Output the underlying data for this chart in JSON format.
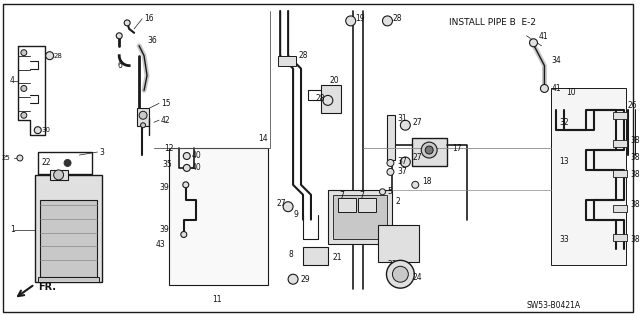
{
  "background_color": "#ffffff",
  "header_text": "INSTALL PIPE B  E-2",
  "part_number": "SW53-B0421A",
  "direction_label": "FR.",
  "fig_width": 6.4,
  "fig_height": 3.16,
  "dpi": 100,
  "lc": "#1a1a1a",
  "gray1": "#c8c8c8",
  "gray2": "#e0e0e0",
  "gray3": "#aaaaaa"
}
